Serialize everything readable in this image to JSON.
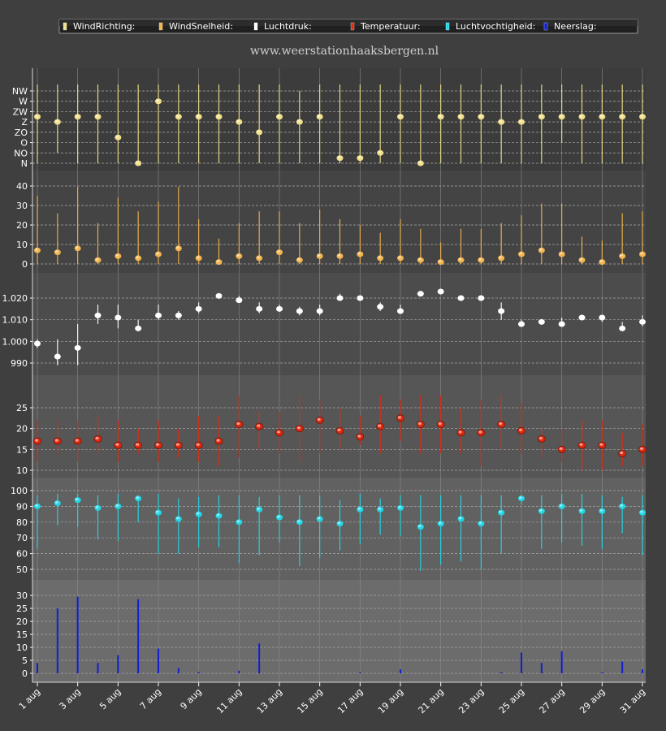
{
  "site_title": "www.weerstationhaaksbergen.nl",
  "colors": {
    "background": "#3f3f3f",
    "winddir": "#f0e08a",
    "windspeed": "#f2b44e",
    "pressure": "#ffffff",
    "temperature": "#e02a10",
    "humidity": "#22d8e8",
    "rain": "#1020d0"
  },
  "chart_data": {
    "type": "multi-panel",
    "x_tick_labels": [
      "1 aug",
      "3 aug",
      "5 aug",
      "7 aug",
      "9 aug",
      "11 aug",
      "13 aug",
      "15 aug",
      "17 aug",
      "19 aug",
      "21 aug",
      "23 aug",
      "25 aug",
      "27 aug",
      "29 aug",
      "31 aug"
    ],
    "legend": [
      {
        "key": "winddir",
        "label": "WindRichting:"
      },
      {
        "key": "windspeed",
        "label": "WindSnelheid:"
      },
      {
        "key": "pressure",
        "label": "Luchtdruk:"
      },
      {
        "key": "temperature",
        "label": "Temperatuur:"
      },
      {
        "key": "humidity",
        "label": "Luchtvochtigheid:"
      },
      {
        "key": "rain",
        "label": "Neerslag:"
      }
    ],
    "panels": [
      {
        "key": "winddir",
        "y_tick_labels": [
          "N",
          "NO",
          "O",
          "ZO",
          "Z",
          "ZW",
          "W",
          "NW"
        ],
        "y_tick_values": [
          0,
          1,
          2,
          3,
          4,
          5,
          6,
          7
        ],
        "ylim": [
          0,
          7.5
        ],
        "values": [
          4.5,
          4,
          4.5,
          4.5,
          2.5,
          0,
          6,
          4.5,
          4.5,
          4.5,
          4,
          3,
          4.5,
          4,
          4.5,
          0.5,
          0.5,
          1,
          4.5,
          0,
          4.5,
          4.5,
          4.5,
          4,
          4,
          4.5,
          4.5,
          4.5,
          4.5,
          4.5,
          4.5
        ],
        "low": [
          0,
          1,
          0,
          0,
          0,
          0,
          0,
          0,
          0,
          0,
          0,
          0,
          0,
          0,
          0,
          0,
          0,
          0,
          0,
          0,
          0,
          0,
          0,
          0,
          0,
          0,
          2,
          0,
          0,
          0,
          0
        ],
        "high": [
          8,
          8,
          8,
          8,
          8,
          8,
          8,
          8,
          8,
          8,
          8,
          8,
          8,
          7,
          8,
          8,
          8,
          8,
          8,
          8,
          8,
          8,
          8,
          8,
          8,
          8,
          8,
          8,
          8,
          8,
          8
        ]
      },
      {
        "key": "windspeed",
        "y_tick_labels": [
          "0",
          "10",
          "20",
          "30",
          "40"
        ],
        "y_tick_values": [
          0,
          10,
          20,
          30,
          40
        ],
        "ylim": [
          0,
          40
        ],
        "values": [
          7,
          6,
          8,
          2,
          4,
          3,
          5,
          8,
          3,
          1,
          4,
          3,
          6,
          2,
          4,
          4,
          5,
          3,
          3,
          2,
          1,
          2,
          2,
          3,
          5,
          7,
          5,
          2,
          1,
          4,
          5
        ],
        "low": [
          0,
          0,
          0,
          0,
          0,
          0,
          0,
          0,
          0,
          0,
          0,
          0,
          0,
          0,
          0,
          0,
          0,
          0,
          0,
          0,
          0,
          0,
          0,
          0,
          0,
          0,
          0,
          0,
          0,
          0,
          0
        ],
        "high": [
          35,
          26,
          40,
          21,
          34,
          27,
          32,
          40,
          23,
          13,
          21,
          27,
          27,
          21,
          28,
          23,
          20,
          16,
          23,
          18,
          11,
          18,
          18,
          21,
          25,
          31,
          31,
          14,
          12,
          26,
          27
        ]
      },
      {
        "key": "pressure",
        "y_tick_labels": [
          "990",
          "1.000",
          "1.010",
          "1.020"
        ],
        "y_tick_values": [
          990,
          1000,
          1010,
          1020
        ],
        "ylim": [
          983,
          1025
        ],
        "values": [
          999,
          993,
          997,
          1012,
          1011,
          1006,
          1012,
          1012,
          1015,
          1021,
          1019,
          1015,
          1015,
          1014,
          1014,
          1020,
          1020,
          1016,
          1014,
          1022,
          1023,
          1020,
          1020,
          1014,
          1008,
          1009,
          1008,
          1011,
          1011,
          1006,
          1009
        ],
        "low": [
          997,
          989,
          989,
          1008,
          1006,
          1005,
          1010,
          1010,
          1013,
          1020,
          1018,
          1013,
          1014,
          1012,
          1012,
          1019,
          1019,
          1014,
          1013,
          1021,
          1022,
          1019,
          1019,
          1010,
          1007,
          1008,
          1007,
          1010,
          1009,
          1005,
          1007
        ],
        "high": [
          1001,
          1001,
          1008,
          1017,
          1017,
          1010,
          1017,
          1014,
          1018,
          1022,
          1021,
          1018,
          1017,
          1016,
          1017,
          1022,
          1021,
          1018,
          1017,
          1023,
          1024,
          1021,
          1021,
          1018,
          1010,
          1010,
          1011,
          1012,
          1012,
          1009,
          1012
        ]
      },
      {
        "key": "temperature",
        "y_tick_labels": [
          "10",
          "15",
          "20",
          "25"
        ],
        "y_tick_values": [
          10,
          15,
          20,
          25
        ],
        "ylim": [
          8,
          28
        ],
        "values": [
          17,
          17,
          17,
          17.5,
          16,
          16,
          16,
          16,
          16,
          17,
          21,
          20.5,
          19,
          20,
          22,
          19.5,
          18,
          20.5,
          22.5,
          21,
          21,
          19,
          19,
          21,
          19.5,
          17.5,
          15,
          16,
          16,
          14,
          15
        ],
        "low": [
          12,
          14,
          12,
          14,
          12,
          14,
          12,
          13,
          12,
          11,
          13,
          15,
          14,
          12,
          14,
          15,
          16,
          14,
          17,
          14,
          14,
          14,
          11,
          15,
          14,
          13,
          12,
          10,
          10,
          11,
          11
        ],
        "high": [
          22,
          22,
          22,
          23,
          22,
          20,
          22,
          20,
          23,
          23,
          28,
          24,
          24,
          28,
          27,
          25,
          23,
          28,
          27,
          28,
          28,
          25,
          27,
          28,
          26,
          20,
          20,
          22,
          22,
          19,
          21
        ]
      },
      {
        "key": "humidity",
        "y_tick_labels": [
          "50",
          "60",
          "70",
          "80",
          "90",
          "100"
        ],
        "y_tick_values": [
          50,
          60,
          70,
          80,
          90,
          100
        ],
        "ylim": [
          45,
          101
        ],
        "values": [
          90,
          92,
          94,
          89,
          90,
          95,
          86,
          82,
          85,
          84,
          80,
          88,
          83,
          80,
          82,
          79,
          88,
          88,
          89,
          77,
          79,
          82,
          79,
          86,
          95,
          87,
          90,
          87,
          87,
          90,
          86
        ],
        "low": [
          63,
          78,
          77,
          69,
          68,
          80,
          60,
          60,
          64,
          64,
          54,
          59,
          67,
          52,
          57,
          62,
          66,
          72,
          71,
          49,
          53,
          55,
          50,
          60,
          91,
          63,
          67,
          65,
          63,
          73,
          59
        ],
        "high": [
          97,
          98,
          98,
          97,
          98,
          97,
          98,
          95,
          96,
          97,
          97,
          96,
          97,
          97,
          97,
          94,
          98,
          95,
          97,
          97,
          97,
          97,
          97,
          97,
          97,
          97,
          98,
          98,
          97,
          96,
          97
        ]
      },
      {
        "key": "rain",
        "y_tick_labels": [
          "0",
          "5",
          "10",
          "15",
          "20",
          "25",
          "30"
        ],
        "y_tick_values": [
          0,
          5,
          10,
          15,
          20,
          25,
          30
        ],
        "ylim": [
          0,
          32
        ],
        "values": [
          4,
          25,
          29.5,
          4,
          7,
          28.5,
          9.5,
          2,
          0.5,
          0,
          1,
          11.5,
          0,
          0,
          0,
          0,
          0.5,
          0,
          1.5,
          0,
          0,
          0,
          0,
          0.5,
          8,
          4,
          8.5,
          0,
          0.5,
          4.5,
          1.5
        ]
      }
    ]
  }
}
